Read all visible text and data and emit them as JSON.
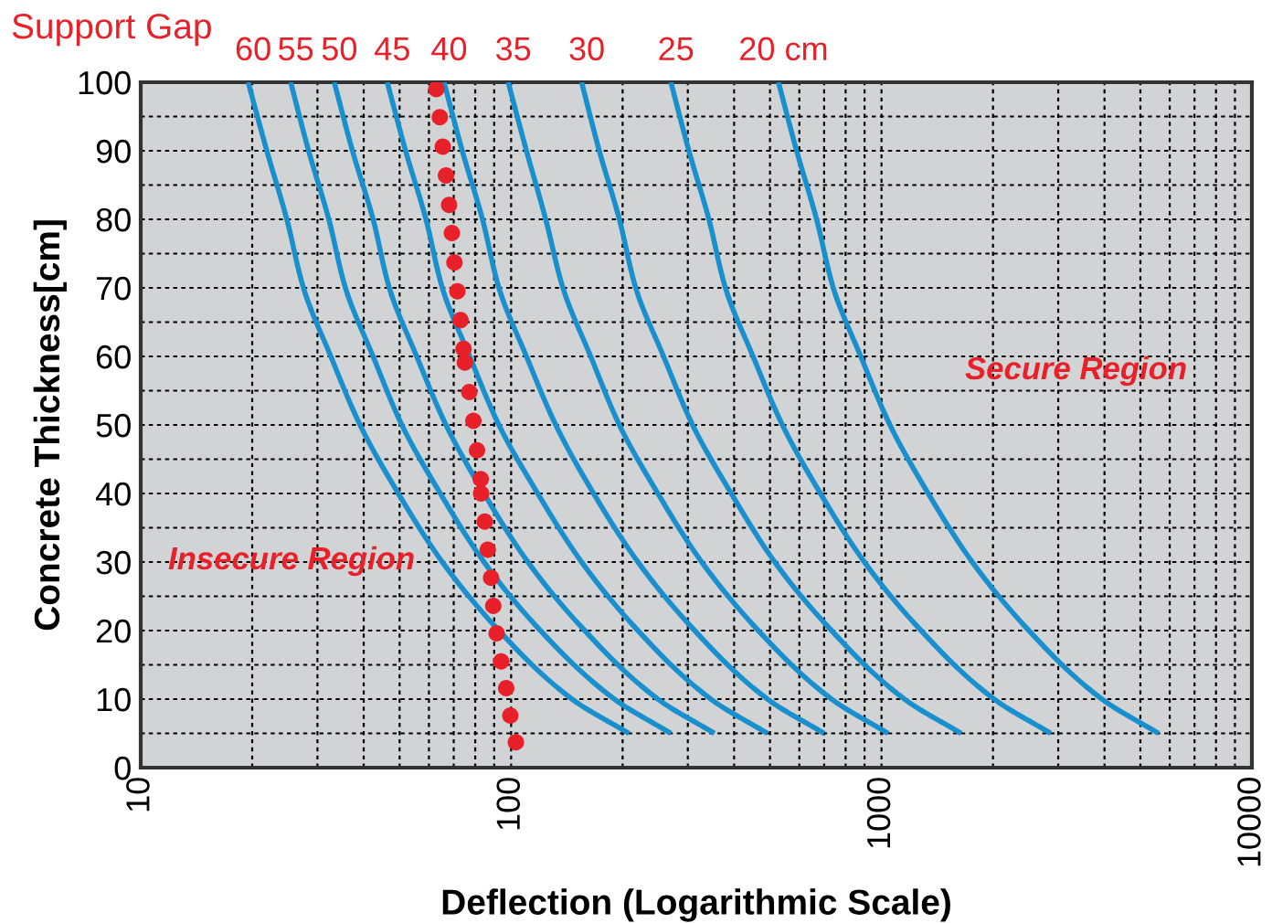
{
  "chart_data": {
    "type": "line",
    "xlabel": "Deflection (Logarithmic Scale)",
    "ylabel": "Concrete Thickness[cm]",
    "log": "x",
    "xlim": [
      10,
      10000
    ],
    "ylim": [
      0,
      100
    ],
    "xticks": [
      10,
      {
        "value": 20,
        "label": null
      },
      {
        "value": 30,
        "label": null
      },
      {
        "value": 40,
        "label": null
      },
      {
        "value": 50,
        "label": null
      },
      {
        "value": 60,
        "label": null
      },
      {
        "value": 70,
        "label": null
      },
      {
        "value": 80,
        "label": null
      },
      {
        "value": 90,
        "label": null
      },
      100,
      {
        "value": 200,
        "label": null
      },
      {
        "value": 300,
        "label": null
      },
      {
        "value": 400,
        "label": null
      },
      {
        "value": 500,
        "label": null
      },
      {
        "value": 600,
        "label": null
      },
      {
        "value": 700,
        "label": null
      },
      {
        "value": 800,
        "label": null
      },
      {
        "value": 900,
        "label": null
      },
      1000,
      {
        "value": 2000,
        "label": null
      },
      {
        "value": 3000,
        "label": null
      },
      {
        "value": 4000,
        "label": null
      },
      {
        "value": 5000,
        "label": null
      },
      {
        "value": 6000,
        "label": null
      },
      {
        "value": 7000,
        "label": null
      },
      {
        "value": 8000,
        "label": null
      },
      {
        "value": 9000,
        "label": null
      },
      10000
    ],
    "yticks": [
      0,
      {
        "value": 5,
        "label": null
      },
      10,
      {
        "value": 15,
        "label": null
      },
      20,
      {
        "value": 25,
        "label": null
      },
      30,
      {
        "value": 35,
        "label": null
      },
      40,
      {
        "value": 45,
        "label": null
      },
      50,
      {
        "value": 55,
        "label": null
      },
      60,
      {
        "value": 65,
        "label": null
      },
      70,
      {
        "value": 75,
        "label": null
      },
      80,
      {
        "value": 85,
        "label": null
      },
      90,
      {
        "value": 95,
        "label": null
      },
      100
    ],
    "grid": true,
    "legend": false,
    "series": [
      {
        "name": "60",
        "color": "#1a8fce",
        "x": [
          19.5,
          21.9,
          24.8,
          27.5,
          32.6,
          39.1,
          49.6,
          65.2,
          92.7,
          146,
          208
        ],
        "values": [
          100,
          90,
          80,
          70,
          60,
          50,
          40,
          30,
          20,
          10,
          5
        ]
      },
      {
        "name": "55",
        "color": "#1a8fce",
        "x": [
          25.4,
          28.4,
          32.2,
          35.7,
          42.4,
          50.7,
          64.4,
          84.5,
          120,
          190,
          270
        ],
        "values": [
          100,
          90,
          80,
          70,
          60,
          50,
          40,
          30,
          20,
          10,
          5
        ]
      },
      {
        "name": "50",
        "color": "#1a8fce",
        "x": [
          33.3,
          37.3,
          42.4,
          46.9,
          55.6,
          66.7,
          84.5,
          111,
          158,
          249,
          354
        ],
        "values": [
          100,
          90,
          80,
          70,
          60,
          50,
          40,
          30,
          20,
          10,
          5
        ]
      },
      {
        "name": "45",
        "color": "#1a8fce",
        "x": [
          46.3,
          51.9,
          58.9,
          65.2,
          77.3,
          92.7,
          118,
          155,
          220,
          346,
          492
        ],
        "values": [
          100,
          90,
          80,
          70,
          60,
          50,
          40,
          30,
          20,
          10,
          5
        ]
      },
      {
        "name": "40",
        "color": "#1a8fce",
        "x": [
          65.9,
          73.8,
          83.7,
          92.7,
          110,
          132,
          167,
          220,
          313,
          492,
          700
        ],
        "values": [
          100,
          90,
          80,
          70,
          60,
          50,
          40,
          30,
          20,
          10,
          5
        ]
      },
      {
        "name": "35",
        "color": "#1a8fce",
        "x": [
          98.2,
          110,
          124,
          138,
          164,
          196,
          249,
          327,
          465,
          733,
          1042
        ],
        "values": [
          100,
          90,
          80,
          70,
          60,
          50,
          40,
          30,
          20,
          10,
          5
        ]
      },
      {
        "name": "30",
        "color": "#1a8fce",
        "x": [
          155,
          173,
          196,
          217,
          258,
          309,
          393,
          515,
          733,
          1153,
          1641
        ],
        "values": [
          100,
          90,
          80,
          70,
          60,
          50,
          40,
          30,
          20,
          10,
          5
        ]
      },
      {
        "name": "25",
        "color": "#1a8fce",
        "x": [
          270,
          302,
          342,
          379,
          450,
          540,
          684,
          899,
          1279,
          2014,
          2864
        ],
        "values": [
          100,
          90,
          80,
          70,
          60,
          50,
          40,
          30,
          20,
          10,
          5
        ]
      },
      {
        "name": "20 cm",
        "color": "#1a8fce",
        "x": [
          527,
          590,
          668,
          741,
          879,
          1054,
          1337,
          1758,
          2500,
          3936,
          5598
        ],
        "values": [
          100,
          90,
          80,
          70,
          60,
          50,
          40,
          30,
          20,
          10,
          5
        ]
      },
      {
        "type": "scatter",
        "marker": "circle",
        "color": "#e8202a",
        "x": [
          62.8,
          64.2,
          65.4,
          66.7,
          68.0,
          69.2,
          70.3,
          71.6,
          73.0,
          74.4,
          75.0,
          77.1,
          79.1,
          80.9,
          82.8,
          83.0,
          84.9,
          86.5,
          88.3,
          89.5,
          91.4,
          94.0,
          97.0,
          99.5,
          103
        ],
        "values": [
          99.0,
          94.9,
          90.6,
          86.4,
          82.1,
          78.0,
          73.7,
          69.5,
          65.3,
          61.1,
          59.1,
          54.8,
          50.6,
          46.3,
          42.1,
          40.0,
          35.9,
          31.8,
          27.7,
          23.6,
          19.6,
          15.5,
          11.6,
          7.6,
          3.7
        ]
      }
    ],
    "annotations": [
      "Support Gap",
      "Insecure Region",
      "Secure Region"
    ]
  }
}
